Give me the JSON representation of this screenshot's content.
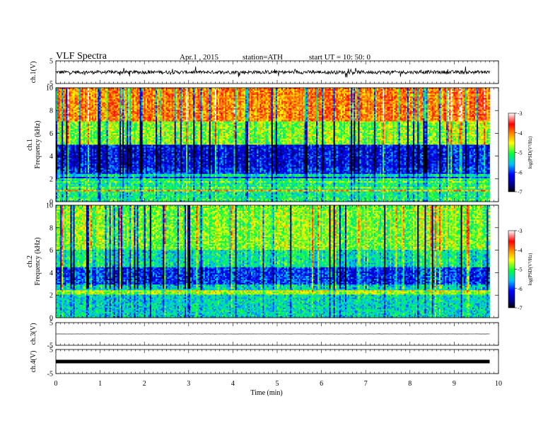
{
  "header": {
    "title": "VLF  Spectra",
    "date": "Apr.1  , 2015",
    "station": "station=ATH",
    "start": "start  UT =   10: 50: 0"
  },
  "chart_data": [
    {
      "type": "line",
      "id": "ch1-waveform",
      "ylabel": "ch.1(V)",
      "ylim": [
        -5,
        5
      ],
      "yticks": [
        "5",
        "-5"
      ],
      "xlim": [
        0,
        10
      ],
      "line_color": "#000000",
      "x_end": 9.8,
      "level": 0,
      "noise_amplitude": 1.5
    },
    {
      "type": "heatmap",
      "id": "ch1-spectrogram",
      "ylabel": "ch.1\nFrequency  (kHz)",
      "ylim": [
        0,
        10
      ],
      "yticks": [
        "0",
        "2",
        "4",
        "6",
        "8",
        "10"
      ],
      "xlim": [
        0,
        10
      ],
      "x_end": 9.8,
      "colorbar": {
        "label": "log(PSD(V²/Hz)",
        "range": [
          -7,
          -3
        ],
        "ticks": [
          "-7",
          "-6",
          "-5",
          "-4",
          "-3"
        ]
      },
      "dominant_levels": [
        {
          "freq_range": [
            7,
            10
          ],
          "log_psd": -4.0
        },
        {
          "freq_range": [
            5,
            7
          ],
          "log_psd": -4.8
        },
        {
          "freq_range": [
            3,
            5
          ],
          "log_psd": -6.2
        },
        {
          "freq_range": [
            2,
            3
          ],
          "log_psd": -6.0
        },
        {
          "freq_range": [
            0,
            2
          ],
          "log_psd": -5.2
        }
      ]
    },
    {
      "type": "heatmap",
      "id": "ch2-spectrogram",
      "ylabel": "ch.2\nFrequency  (kHz)",
      "ylim": [
        0,
        10
      ],
      "yticks": [
        "0",
        "2",
        "4",
        "6",
        "8",
        "10"
      ],
      "xlim": [
        0,
        10
      ],
      "x_end": 9.8,
      "colorbar": {
        "label": "log(PSD(V²/Hz)",
        "range": [
          -7,
          -3
        ],
        "ticks": [
          "-7",
          "-6",
          "-5",
          "-4",
          "-3"
        ]
      },
      "dominant_levels": [
        {
          "freq_range": [
            6,
            10
          ],
          "log_psd": -4.8
        },
        {
          "freq_range": [
            4.5,
            6
          ],
          "log_psd": -5.3
        },
        {
          "freq_range": [
            3,
            4.5
          ],
          "log_psd": -6.0
        },
        {
          "freq_range": [
            0,
            3
          ],
          "log_psd": -5.4
        }
      ]
    },
    {
      "type": "line",
      "id": "ch3-waveform",
      "ylabel": "ch.3(V)",
      "ylim": [
        -5,
        5
      ],
      "yticks": [
        "5",
        "-5"
      ],
      "xlim": [
        0,
        10
      ],
      "line_color": "#000000",
      "x_end": 9.8,
      "level": 0,
      "noise_amplitude": 0.1
    },
    {
      "type": "line",
      "id": "ch4-waveform",
      "ylabel": "ch.4(V)",
      "ylim": [
        -5,
        5
      ],
      "yticks": [
        "5",
        "-5"
      ],
      "xlim": [
        0,
        10
      ],
      "line_color": "#000000",
      "x_end": 9.8,
      "level": 0,
      "noise_amplitude": 0.25
    }
  ],
  "xaxis": {
    "label": "Time  (min)",
    "ticks": [
      "0",
      "1",
      "2",
      "3",
      "4",
      "5",
      "6",
      "7",
      "8",
      "9",
      "10"
    ]
  }
}
